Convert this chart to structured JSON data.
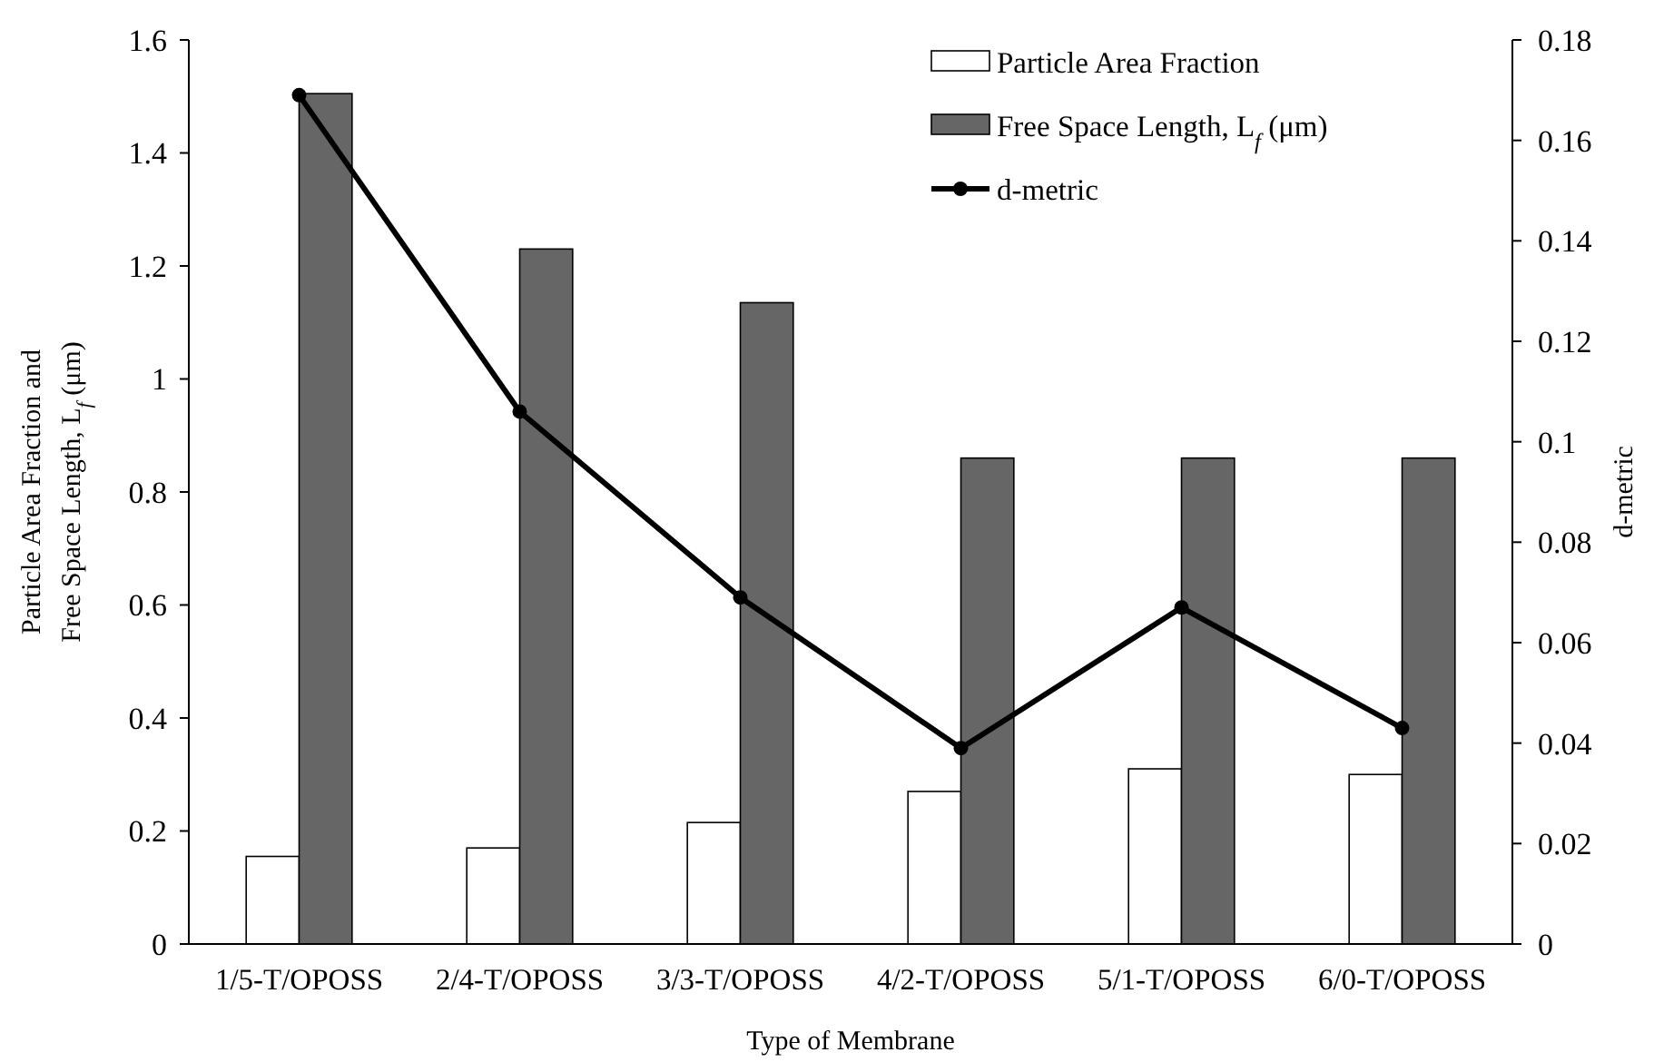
{
  "chart_data": {
    "type": "bar",
    "xlabel": "Type of Membrane",
    "ylabel": "Particle Area Fraction and Free Space Length, L$_{f}$ (μm)",
    "y2label": "d-metric",
    "categories": [
      "1/5-T/OPOSS",
      "2/4-T/OPOSS",
      "3/3-T/OPOSS",
      "4/2-T/OPOSS",
      "5/1-T/OPOSS",
      "6/0-T/OPOSS"
    ],
    "series": [
      {
        "name": "Particle Area Fraction",
        "color": "#ffffff",
        "values": [
          0.155,
          0.17,
          0.215,
          0.27,
          0.31,
          0.3
        ]
      },
      {
        "name": "Free Space Length, L$_{f}$ (μm)",
        "color": "#666666",
        "values": [
          1.505,
          1.23,
          1.135,
          0.86,
          0.86,
          0.86
        ]
      },
      {
        "name": "d-metric",
        "type": "line",
        "axis": "y2",
        "color": "#000000",
        "marker": "circle",
        "values": [
          0.169,
          0.106,
          0.069,
          0.039,
          0.067,
          0.043
        ]
      }
    ],
    "ylim": [
      0,
      1.6
    ],
    "yticks": [
      0,
      0.2,
      0.4,
      0.6,
      0.8,
      1,
      1.2,
      1.4,
      1.6
    ],
    "y2lim": [
      0,
      0.18
    ],
    "y2ticks": [
      0,
      0.02,
      0.04,
      0.06,
      0.08,
      0.1,
      0.12,
      0.14,
      0.16,
      0.18
    ],
    "grid": false,
    "legend": "top right"
  }
}
